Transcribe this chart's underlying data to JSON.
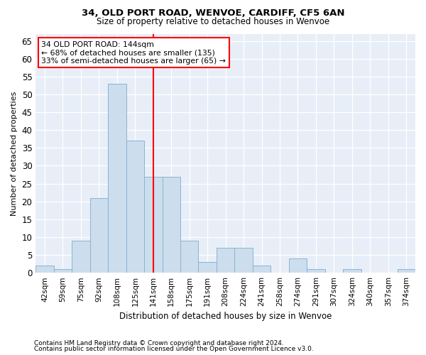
{
  "title1": "34, OLD PORT ROAD, WENVOE, CARDIFF, CF5 6AN",
  "title2": "Size of property relative to detached houses in Wenvoe",
  "xlabel": "Distribution of detached houses by size in Wenvoe",
  "ylabel": "Number of detached properties",
  "categories": [
    "42sqm",
    "59sqm",
    "75sqm",
    "92sqm",
    "108sqm",
    "125sqm",
    "141sqm",
    "158sqm",
    "175sqm",
    "191sqm",
    "208sqm",
    "224sqm",
    "241sqm",
    "258sqm",
    "274sqm",
    "291sqm",
    "307sqm",
    "324sqm",
    "340sqm",
    "357sqm",
    "374sqm"
  ],
  "values": [
    2,
    1,
    9,
    21,
    53,
    37,
    27,
    27,
    9,
    3,
    7,
    7,
    2,
    0,
    4,
    1,
    0,
    1,
    0,
    0,
    1
  ],
  "bar_color": "#ccdded",
  "bar_edge_color": "#8ab4d4",
  "vline_x_index": 6,
  "vline_color": "red",
  "annotation_line1": "34 OLD PORT ROAD: 144sqm",
  "annotation_line2": "← 68% of detached houses are smaller (135)",
  "annotation_line3": "33% of semi-detached houses are larger (65) →",
  "annotation_box_color": "white",
  "annotation_edge_color": "red",
  "ylim": [
    0,
    67
  ],
  "yticks": [
    0,
    5,
    10,
    15,
    20,
    25,
    30,
    35,
    40,
    45,
    50,
    55,
    60,
    65
  ],
  "background_color": "#e8eef8",
  "footer1": "Contains HM Land Registry data © Crown copyright and database right 2024.",
  "footer2": "Contains public sector information licensed under the Open Government Licence v3.0."
}
